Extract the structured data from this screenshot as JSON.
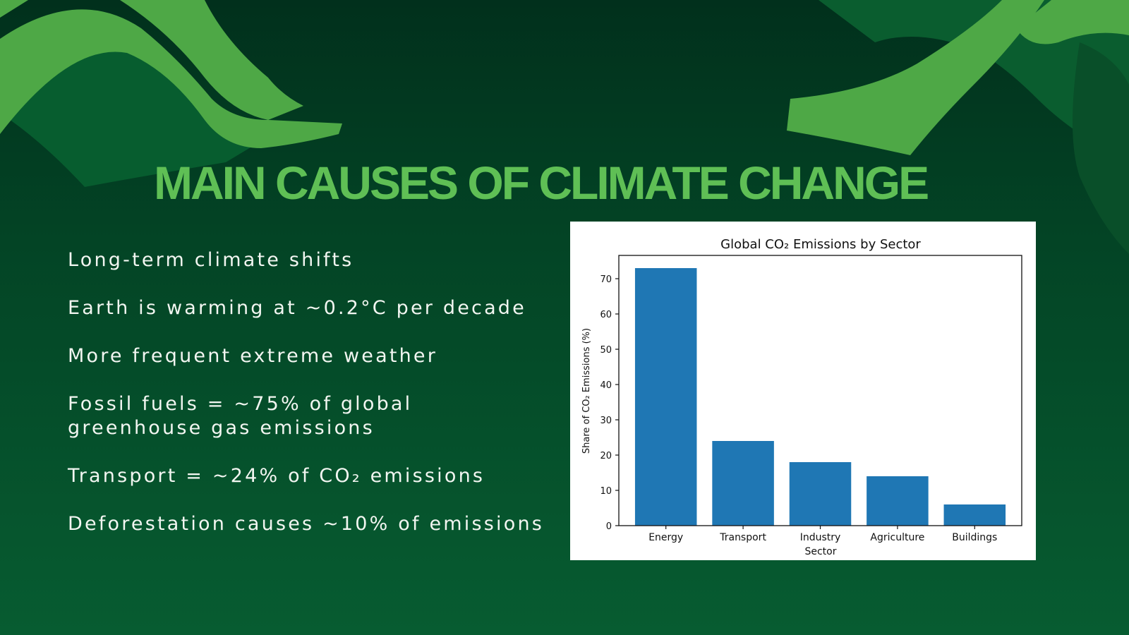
{
  "slide": {
    "title": "MAIN CAUSES OF CLIMATE CHANGE",
    "bullets": [
      "Long-term climate shifts",
      "Earth is warming at ~0.2°C per decade",
      "More frequent extreme weather",
      "Fossil fuels = ~75% of global greenhouse gas emissions",
      "Transport = ~24% of CO₂ emissions",
      "Deforestation causes ~10% of emissions"
    ]
  },
  "colors": {
    "title": "#5fbf55",
    "bar": "#1f77b4",
    "background_dark": "#01301c",
    "accent_shape": "#4ea846"
  },
  "chart_data": {
    "type": "bar",
    "title": "Global CO₂ Emissions by Sector",
    "xlabel": "Sector",
    "ylabel": "Share of CO₂ Emissions (%)",
    "categories": [
      "Energy",
      "Transport",
      "Industry",
      "Agriculture",
      "Buildings"
    ],
    "values": [
      73,
      24,
      18,
      14,
      6
    ],
    "ylim": [
      0,
      76.6
    ],
    "yticks": [
      0,
      10,
      20,
      30,
      40,
      50,
      60,
      70
    ],
    "grid": false,
    "legend": "none"
  }
}
